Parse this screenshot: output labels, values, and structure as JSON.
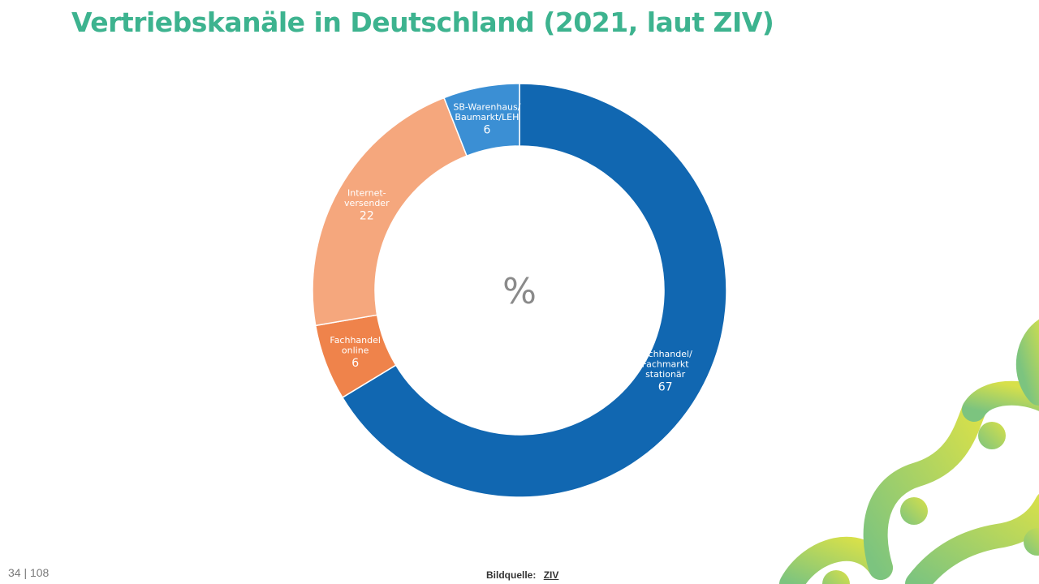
{
  "title": "Vertriebskanäle in Deutschland (2021, laut ZIV)",
  "footer": {
    "page_number": "34 | 108",
    "source_label": "Bildquelle:",
    "source_link": "ZIV"
  },
  "colors": {
    "title": "#3db38f",
    "decoration_yellow": "#d7e04a",
    "decoration_green": "#7cc47f"
  },
  "chart_data": {
    "type": "pie",
    "variant": "donut",
    "center_label": "%",
    "unit": "%",
    "slices": [
      {
        "label_lines": [
          "Fachhandel/",
          "Fachmarkt",
          "stationär"
        ],
        "value": 67,
        "color": "#1167b1"
      },
      {
        "label_lines": [
          "Fachhandel",
          "online"
        ],
        "value": 6,
        "color": "#ef834b"
      },
      {
        "label_lines": [
          "Internet-",
          "versender"
        ],
        "value": 22,
        "color": "#f5a77d"
      },
      {
        "label_lines": [
          "SB-Warenhaus/",
          "Baumarkt/LEH"
        ],
        "value": 6,
        "color": "#3b8fd4"
      }
    ],
    "start": "12 o'clock",
    "direction": "clockwise",
    "legend": "none"
  }
}
